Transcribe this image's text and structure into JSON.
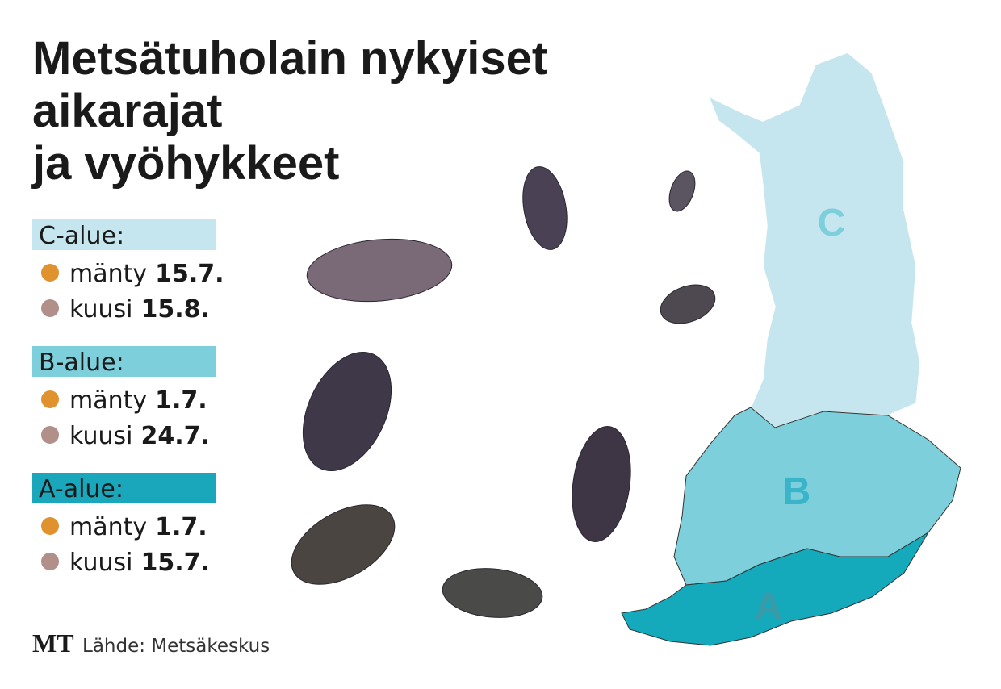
{
  "title": [
    "Metsätuholain nykyiset",
    "aikarajat",
    "ja vyöhykkeet"
  ],
  "zones": [
    {
      "label": "C-alue",
      "items": [
        {
          "species": "mänty",
          "date": "15.7."
        },
        {
          "species": "kuusi",
          "date": "15.8."
        }
      ]
    },
    {
      "label": "B-alue",
      "items": [
        {
          "species": "mänty",
          "date": "1.7."
        },
        {
          "species": "kuusi",
          "date": "24.7."
        }
      ]
    },
    {
      "label": "A-alue",
      "items": [
        {
          "species": "mänty",
          "date": "1.7."
        },
        {
          "species": "kuusi",
          "date": "15.7."
        }
      ]
    }
  ],
  "map_labels": [
    "C",
    "B",
    "A"
  ],
  "source": {
    "logo": "MT",
    "text": "Lähde: Metsäkeskus"
  }
}
